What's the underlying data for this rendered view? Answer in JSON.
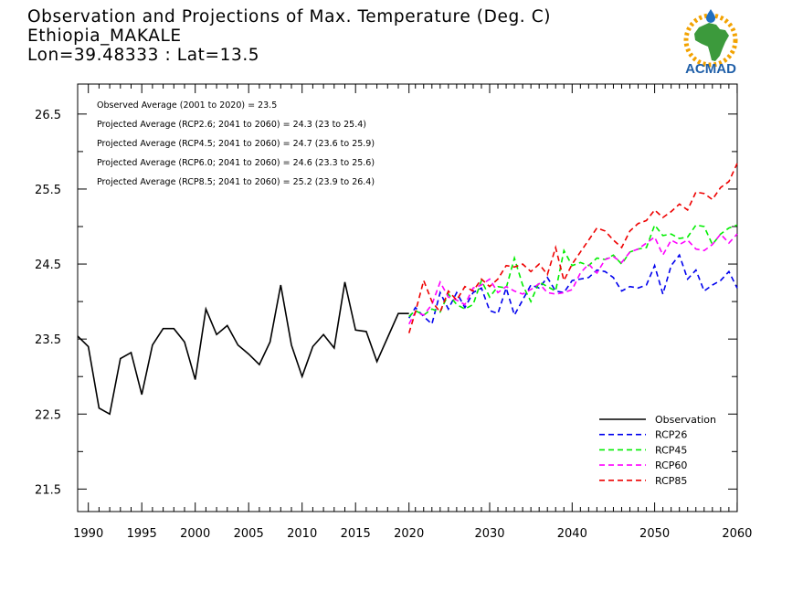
{
  "header": {
    "line1": "Observation and Projections of Max. Temperature (Deg. C)",
    "line2": "Ethiopia_MAKALE",
    "line3": "Lon=39.48333 : Lat=13.5"
  },
  "logo": {
    "text": "ACMAD",
    "icon": "africa-map-sun-logo"
  },
  "annotations": [
    "Observed Average (2001 to 2020) = 23.5",
    "Projected Average (RCP2.6; 2041 to 2060) = 24.3 (23 to 25.4)",
    "Projected Average (RCP4.5; 2041 to 2060) = 24.7 (23.6 to 25.9)",
    "Projected Average (RCP6.0; 2041 to 2060) = 24.6 (23.3 to 25.6)",
    "Projected Average (RCP8.5; 2041 to 2060) = 25.2 (23.9 to 26.4)"
  ],
  "chart_data": {
    "type": "line",
    "xlim": [
      1989,
      2060
    ],
    "ylim": [
      21.2,
      26.9
    ],
    "x_ticks": [
      "1990",
      "1995",
      "2000",
      "2005",
      "2010",
      "2015",
      "2020",
      "2030",
      "2040",
      "2050",
      "2060"
    ],
    "y_ticks": [
      "26.5",
      "25.5",
      "24.5",
      "23.5",
      "22.5",
      "21.5"
    ],
    "grid": false,
    "legend_position": "bottom-right",
    "series": [
      {
        "name": "Observation",
        "color": "#000000",
        "dashed": false,
        "x": [
          1989,
          1990,
          1991,
          1992,
          1993,
          1994,
          1995,
          1996,
          1997,
          1998,
          1999,
          2000,
          2001,
          2002,
          2003,
          2004,
          2005,
          2006,
          2007,
          2008,
          2009,
          2010,
          2011,
          2012,
          2013,
          2014,
          2015,
          2016,
          2017,
          2018,
          2019,
          2020
        ],
        "y": [
          23.54,
          23.4,
          22.58,
          22.5,
          23.24,
          23.32,
          22.76,
          23.42,
          23.64,
          23.64,
          23.46,
          22.96,
          23.9,
          23.56,
          23.68,
          23.42,
          23.3,
          23.16,
          23.46,
          24.22,
          23.42,
          23.0,
          23.4,
          23.56,
          23.38,
          24.26,
          23.62,
          23.6,
          23.2,
          23.52,
          23.84,
          23.84
        ]
      },
      {
        "name": "RCP26",
        "color": "#0000ee",
        "dashed": true,
        "x": [
          2020,
          2021,
          2022,
          2023,
          2024,
          2025,
          2026,
          2027,
          2028,
          2029,
          2030,
          2031,
          2032,
          2033,
          2034,
          2035,
          2036,
          2037,
          2038,
          2039,
          2040,
          2041,
          2042,
          2043,
          2044,
          2045,
          2046,
          2047,
          2048,
          2049,
          2050,
          2051,
          2052,
          2053,
          2054,
          2055,
          2056,
          2057,
          2058,
          2059,
          2060
        ],
        "y": [
          23.78,
          23.92,
          23.8,
          23.7,
          24.12,
          23.9,
          24.12,
          23.92,
          24.12,
          24.18,
          23.88,
          23.84,
          24.18,
          23.82,
          24.02,
          24.22,
          24.18,
          24.32,
          24.14,
          24.12,
          24.28,
          24.3,
          24.32,
          24.42,
          24.4,
          24.32,
          24.14,
          24.2,
          24.18,
          24.22,
          24.48,
          24.1,
          24.48,
          24.62,
          24.3,
          24.42,
          24.14,
          24.22,
          24.28,
          24.4,
          24.18
        ]
      },
      {
        "name": "RCP45",
        "color": "#00ee00",
        "dashed": true,
        "x": [
          2020,
          2021,
          2022,
          2023,
          2024,
          2025,
          2026,
          2027,
          2028,
          2029,
          2030,
          2031,
          2032,
          2033,
          2034,
          2035,
          2036,
          2037,
          2038,
          2039,
          2040,
          2041,
          2042,
          2043,
          2044,
          2045,
          2046,
          2047,
          2048,
          2049,
          2050,
          2051,
          2052,
          2053,
          2054,
          2055,
          2056,
          2057,
          2058,
          2059,
          2060
        ],
        "y": [
          23.8,
          23.88,
          23.82,
          23.9,
          23.86,
          24.1,
          23.96,
          23.9,
          23.96,
          24.28,
          24.06,
          24.2,
          24.18,
          24.58,
          24.22,
          24.0,
          24.26,
          24.2,
          24.14,
          24.68,
          24.48,
          24.52,
          24.48,
          24.58,
          24.56,
          24.62,
          24.5,
          24.66,
          24.7,
          24.72,
          25.02,
          24.88,
          24.9,
          24.84,
          24.86,
          25.02,
          25.0,
          24.76,
          24.9,
          24.98,
          25.02
        ]
      },
      {
        "name": "RCP60",
        "color": "#ff00ff",
        "dashed": true,
        "x": [
          2020,
          2021,
          2022,
          2023,
          2024,
          2025,
          2026,
          2027,
          2028,
          2029,
          2030,
          2031,
          2032,
          2033,
          2034,
          2035,
          2036,
          2037,
          2038,
          2039,
          2040,
          2041,
          2042,
          2043,
          2044,
          2045,
          2046,
          2047,
          2048,
          2049,
          2050,
          2051,
          2052,
          2053,
          2054,
          2055,
          2056,
          2057,
          2058,
          2059,
          2060
        ],
        "y": [
          23.7,
          23.86,
          23.82,
          23.96,
          24.26,
          24.06,
          24.02,
          23.96,
          24.18,
          24.22,
          24.3,
          24.12,
          24.2,
          24.14,
          24.1,
          24.16,
          24.24,
          24.12,
          24.1,
          24.12,
          24.16,
          24.38,
          24.5,
          24.38,
          24.56,
          24.6,
          24.52,
          24.66,
          24.7,
          24.78,
          24.86,
          24.62,
          24.82,
          24.76,
          24.82,
          24.7,
          24.68,
          24.76,
          24.9,
          24.78,
          24.9
        ]
      },
      {
        "name": "RCP85",
        "color": "#ee0000",
        "dashed": true,
        "x": [
          2020,
          2021,
          2022,
          2023,
          2024,
          2025,
          2026,
          2027,
          2028,
          2029,
          2030,
          2031,
          2032,
          2033,
          2034,
          2035,
          2036,
          2037,
          2038,
          2039,
          2040,
          2041,
          2042,
          2043,
          2044,
          2045,
          2046,
          2047,
          2048,
          2049,
          2050,
          2051,
          2052,
          2053,
          2054,
          2055,
          2056,
          2057,
          2058,
          2059,
          2060
        ],
        "y": [
          23.58,
          23.86,
          24.28,
          24.0,
          23.86,
          24.14,
          24.02,
          24.2,
          24.14,
          24.3,
          24.2,
          24.3,
          24.48,
          24.46,
          24.5,
          24.4,
          24.5,
          24.36,
          24.72,
          24.28,
          24.5,
          24.66,
          24.82,
          24.98,
          24.94,
          24.82,
          24.72,
          24.94,
          25.04,
          25.08,
          25.22,
          25.12,
          25.2,
          25.3,
          25.22,
          25.46,
          25.44,
          25.36,
          25.52,
          25.6,
          25.84
        ]
      }
    ]
  }
}
